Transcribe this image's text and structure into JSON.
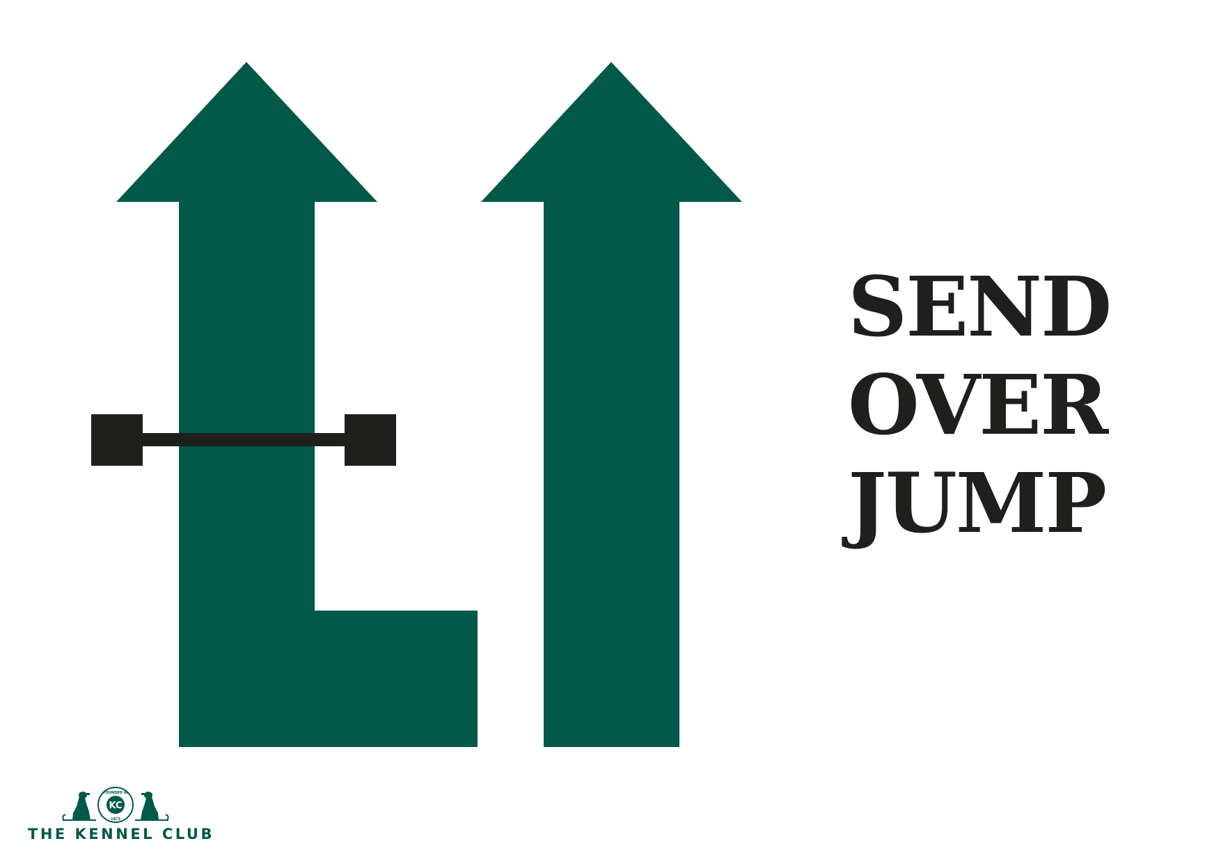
{
  "sign": {
    "title_lines": [
      "SEND",
      "OVER",
      "JUMP"
    ]
  },
  "logo": {
    "wordmark": "THE KENNEL CLUB",
    "emblem_monogram": "KC",
    "emblem_ring_top": "FOUNDED IN",
    "emblem_ring_bottom": "1873"
  },
  "colors": {
    "arrow_green": "#02594a",
    "jump_black": "#1f1f1d",
    "background": "#ffffff"
  },
  "icons": {
    "left_path": "l-shaped-up-arrow",
    "right_path": "straight-up-arrow",
    "obstacle": "jump-hurdle",
    "logo_dogs": "seated-dog-icon"
  }
}
